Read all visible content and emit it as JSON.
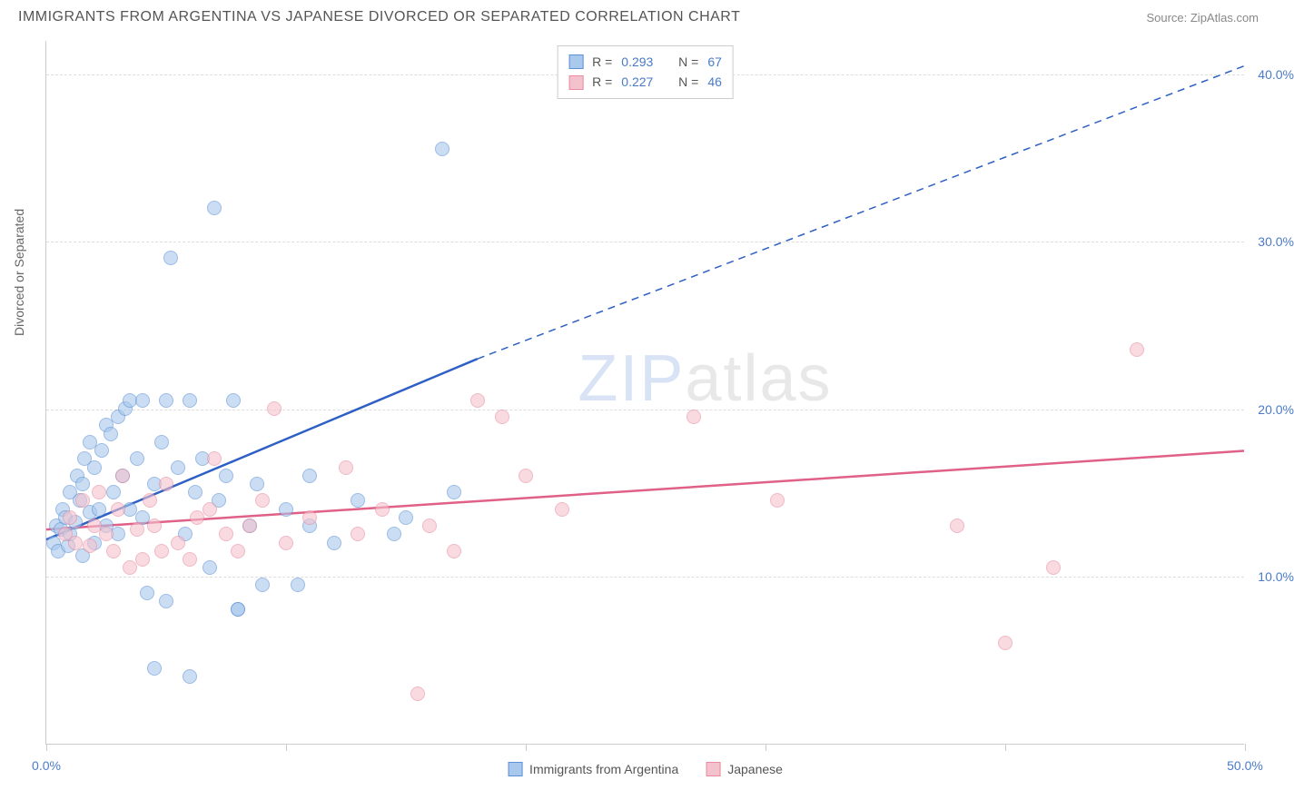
{
  "title": "IMMIGRANTS FROM ARGENTINA VS JAPANESE DIVORCED OR SEPARATED CORRELATION CHART",
  "source": "Source: ZipAtlas.com",
  "y_axis_label": "Divorced or Separated",
  "watermark_zip": "ZIP",
  "watermark_atlas": "atlas",
  "chart": {
    "type": "scatter",
    "xlim": [
      0,
      50
    ],
    "ylim": [
      0,
      42
    ],
    "x_ticks": [
      0,
      10,
      20,
      30,
      40,
      50
    ],
    "x_tick_labels": {
      "0": "0.0%",
      "50": "50.0%"
    },
    "y_gridlines": [
      10,
      20,
      30,
      40
    ],
    "y_tick_labels": {
      "10": "10.0%",
      "20": "20.0%",
      "30": "30.0%",
      "40": "40.0%"
    },
    "background_color": "#ffffff",
    "grid_color": "#dddddd",
    "axis_color": "#cccccc",
    "tick_label_color": "#4a7bc8",
    "axis_label_color": "#666666"
  },
  "series": [
    {
      "name": "Immigrants from Argentina",
      "fill_color": "#a8c8ec",
      "stroke_color": "#5b8fd6",
      "line_color": "#2d5fc4",
      "r_label": "R =",
      "r_value": "0.293",
      "n_label": "N =",
      "n_value": "67",
      "trend": {
        "x1": 0,
        "y1": 12.2,
        "x2_solid": 18,
        "y2_solid": 23,
        "x2_dash": 50,
        "y2_dash": 40.5
      },
      "points": [
        [
          0.3,
          12.0
        ],
        [
          0.4,
          13.0
        ],
        [
          0.5,
          11.5
        ],
        [
          0.6,
          12.8
        ],
        [
          0.7,
          14.0
        ],
        [
          0.8,
          13.5
        ],
        [
          0.9,
          11.8
        ],
        [
          1.0,
          12.5
        ],
        [
          1.0,
          15.0
        ],
        [
          1.2,
          13.2
        ],
        [
          1.3,
          16.0
        ],
        [
          1.4,
          14.5
        ],
        [
          1.5,
          11.2
        ],
        [
          1.5,
          15.5
        ],
        [
          1.6,
          17.0
        ],
        [
          1.8,
          13.8
        ],
        [
          1.8,
          18.0
        ],
        [
          2.0,
          12.0
        ],
        [
          2.0,
          16.5
        ],
        [
          2.2,
          14.0
        ],
        [
          2.3,
          17.5
        ],
        [
          2.5,
          19.0
        ],
        [
          2.5,
          13.0
        ],
        [
          2.7,
          18.5
        ],
        [
          2.8,
          15.0
        ],
        [
          3.0,
          12.5
        ],
        [
          3.0,
          19.5
        ],
        [
          3.2,
          16.0
        ],
        [
          3.3,
          20.0
        ],
        [
          3.5,
          14.0
        ],
        [
          3.5,
          20.5
        ],
        [
          3.8,
          17.0
        ],
        [
          4.0,
          13.5
        ],
        [
          4.0,
          20.5
        ],
        [
          4.2,
          9.0
        ],
        [
          4.5,
          15.5
        ],
        [
          4.5,
          4.5
        ],
        [
          4.8,
          18.0
        ],
        [
          5.0,
          8.5
        ],
        [
          5.0,
          20.5
        ],
        [
          5.2,
          29.0
        ],
        [
          5.5,
          16.5
        ],
        [
          5.8,
          12.5
        ],
        [
          6.0,
          4.0
        ],
        [
          6.0,
          20.5
        ],
        [
          6.2,
          15.0
        ],
        [
          6.5,
          17.0
        ],
        [
          6.8,
          10.5
        ],
        [
          7.0,
          32.0
        ],
        [
          7.2,
          14.5
        ],
        [
          7.5,
          16.0
        ],
        [
          7.8,
          20.5
        ],
        [
          8.0,
          8.0
        ],
        [
          8.0,
          8.0
        ],
        [
          8.5,
          13.0
        ],
        [
          8.8,
          15.5
        ],
        [
          9.0,
          9.5
        ],
        [
          10.0,
          14.0
        ],
        [
          10.5,
          9.5
        ],
        [
          11.0,
          13.0
        ],
        [
          11.0,
          16.0
        ],
        [
          12.0,
          12.0
        ],
        [
          13.0,
          14.5
        ],
        [
          14.5,
          12.5
        ],
        [
          15.0,
          13.5
        ],
        [
          16.5,
          35.5
        ],
        [
          17.0,
          15.0
        ]
      ]
    },
    {
      "name": "Japanese",
      "fill_color": "#f4c2cd",
      "stroke_color": "#e88ba0",
      "line_color": "#e06088",
      "r_label": "R =",
      "r_value": "0.227",
      "n_label": "N =",
      "n_value": "46",
      "trend": {
        "x1": 0,
        "y1": 12.8,
        "x2_solid": 50,
        "y2_solid": 17.5,
        "x2_dash": 50,
        "y2_dash": 17.5
      },
      "points": [
        [
          0.8,
          12.5
        ],
        [
          1.0,
          13.5
        ],
        [
          1.2,
          12.0
        ],
        [
          1.5,
          14.5
        ],
        [
          1.8,
          11.8
        ],
        [
          2.0,
          13.0
        ],
        [
          2.2,
          15.0
        ],
        [
          2.5,
          12.5
        ],
        [
          2.8,
          11.5
        ],
        [
          3.0,
          14.0
        ],
        [
          3.2,
          16.0
        ],
        [
          3.5,
          10.5
        ],
        [
          3.8,
          12.8
        ],
        [
          4.0,
          11.0
        ],
        [
          4.3,
          14.5
        ],
        [
          4.5,
          13.0
        ],
        [
          4.8,
          11.5
        ],
        [
          5.0,
          15.5
        ],
        [
          5.5,
          12.0
        ],
        [
          6.0,
          11.0
        ],
        [
          6.3,
          13.5
        ],
        [
          6.8,
          14.0
        ],
        [
          7.0,
          17.0
        ],
        [
          7.5,
          12.5
        ],
        [
          8.0,
          11.5
        ],
        [
          8.5,
          13.0
        ],
        [
          9.0,
          14.5
        ],
        [
          9.5,
          20.0
        ],
        [
          10.0,
          12.0
        ],
        [
          11.0,
          13.5
        ],
        [
          12.5,
          16.5
        ],
        [
          13.0,
          12.5
        ],
        [
          14.0,
          14.0
        ],
        [
          15.5,
          3.0
        ],
        [
          16.0,
          13.0
        ],
        [
          17.0,
          11.5
        ],
        [
          18.0,
          20.5
        ],
        [
          19.0,
          19.5
        ],
        [
          20.0,
          16.0
        ],
        [
          21.5,
          14.0
        ],
        [
          27.0,
          19.5
        ],
        [
          30.5,
          14.5
        ],
        [
          40.0,
          6.0
        ],
        [
          42.0,
          10.5
        ],
        [
          45.5,
          23.5
        ],
        [
          38.0,
          13.0
        ]
      ]
    }
  ],
  "bottom_legend": [
    {
      "label": "Immigrants from Argentina",
      "fill": "#a8c8ec",
      "stroke": "#5b8fd6"
    },
    {
      "label": "Japanese",
      "fill": "#f4c2cd",
      "stroke": "#e88ba0"
    }
  ]
}
